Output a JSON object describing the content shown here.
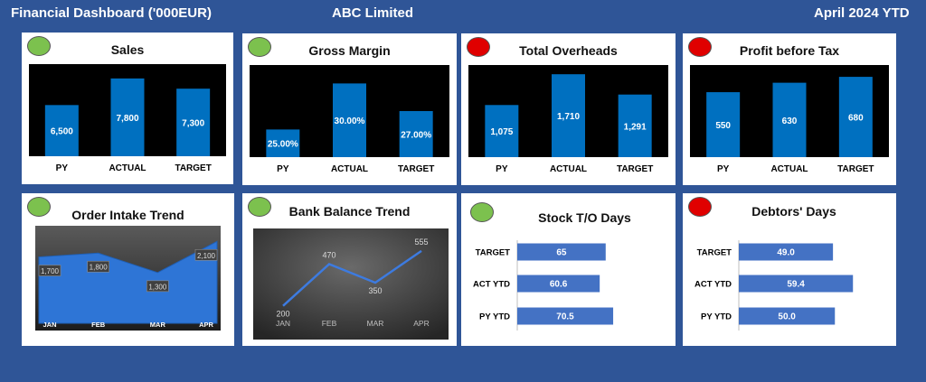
{
  "header": {
    "title": "Financial Dashboard ('000EUR)",
    "company": "ABC Limited",
    "period": "April 2024 YTD"
  },
  "colors": {
    "page_bg": "#2f5597",
    "bar": "#0070c0",
    "status_green": "#7cc14e",
    "status_red": "#e00000",
    "hbar": "#4472c4"
  },
  "chart_data": [
    {
      "id": "sales",
      "type": "bar",
      "title": "Sales",
      "status": "green",
      "categories": [
        "PY",
        "ACTUAL",
        "TARGET"
      ],
      "values": [
        6500,
        7800,
        7300
      ],
      "labels": [
        "6,500",
        "7,800",
        "7,300"
      ],
      "ylim": [
        4000,
        8500
      ]
    },
    {
      "id": "gross_margin",
      "type": "bar",
      "title": "Gross Margin",
      "status": "green",
      "categories": [
        "PY",
        "ACTUAL",
        "TARGET"
      ],
      "values": [
        25.0,
        30.0,
        27.0
      ],
      "labels": [
        "25.00%",
        "30.00%",
        "27.00%"
      ],
      "ylim": [
        22,
        32
      ]
    },
    {
      "id": "overheads",
      "type": "bar",
      "title": "Total Overheads",
      "status": "red",
      "categories": [
        "PY",
        "ACTUAL",
        "TARGET"
      ],
      "values": [
        1075,
        1710,
        1291
      ],
      "labels": [
        "1,075",
        "1,710",
        "1,291"
      ],
      "ylim": [
        0,
        1900
      ]
    },
    {
      "id": "pbt",
      "type": "bar",
      "title": "Profit before Tax",
      "status": "red",
      "categories": [
        "PY",
        "ACTUAL",
        "TARGET"
      ],
      "values": [
        550,
        630,
        680
      ],
      "labels": [
        "550",
        "630",
        "680"
      ],
      "ylim": [
        0,
        780
      ]
    },
    {
      "id": "order_intake",
      "type": "area",
      "title": "Order Intake Trend",
      "status": "green",
      "categories": [
        "JAN",
        "FEB",
        "MAR",
        "APR"
      ],
      "values": [
        1700,
        1800,
        1300,
        2100
      ],
      "labels": [
        "1,700",
        "1,800",
        "1,300",
        "2,100"
      ],
      "ylim": [
        0,
        2500
      ]
    },
    {
      "id": "bank_balance",
      "type": "line",
      "title": "Bank Balance Trend",
      "status": "green",
      "categories": [
        "JAN",
        "FEB",
        "MAR",
        "APR"
      ],
      "values": [
        200,
        470,
        350,
        555
      ],
      "labels": [
        "200",
        "470",
        "350",
        "555"
      ],
      "ylim": [
        0,
        700
      ]
    },
    {
      "id": "stock_days",
      "type": "hbar",
      "title": "Stock T/O Days",
      "status": "green",
      "categories": [
        "TARGET",
        "ACT YTD",
        "PY YTD"
      ],
      "values": [
        65,
        60.6,
        70.5
      ],
      "labels": [
        "65",
        "60.6",
        "70.5"
      ],
      "xlim": [
        0,
        113
      ]
    },
    {
      "id": "debtors_days",
      "type": "hbar",
      "title": "Debtors' Days",
      "status": "red",
      "categories": [
        "TARGET",
        "ACT YTD",
        "PY YTD"
      ],
      "values": [
        49.0,
        59.4,
        50.0
      ],
      "labels": [
        "49.0",
        "59.4",
        "50.0"
      ],
      "xlim": [
        0,
        80
      ]
    }
  ]
}
